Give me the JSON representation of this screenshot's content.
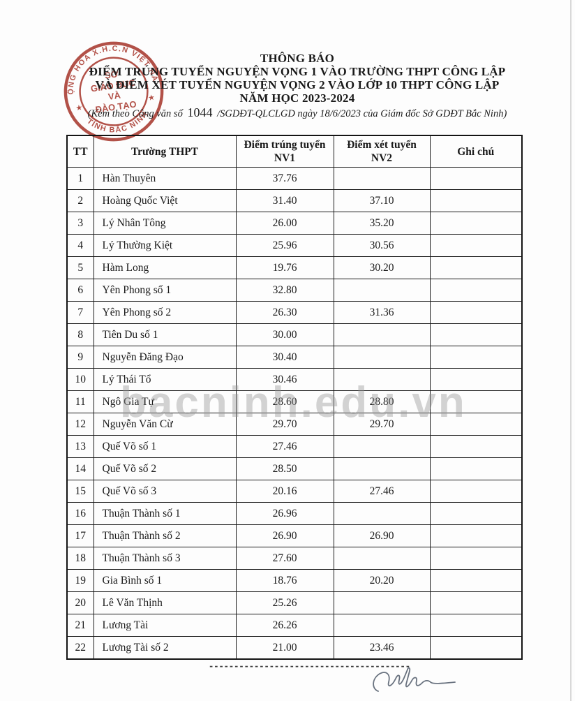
{
  "watermark": {
    "text": "bacninh.edu.vn"
  },
  "stamp": {
    "ring_top": "CỘNG HÒA X.H.C.N VIỆT NAM",
    "ring_bottom": "TỈNH BẮC NINH",
    "center_line1": "SỞ",
    "center_line2": "GIÁO DỤC",
    "center_line3": "VÀ",
    "center_line4": "ĐÀO TẠO",
    "star": "★",
    "color": "#a83a30"
  },
  "header": {
    "title": "THÔNG BÁO",
    "line2": "ĐIỂM TRÚNG TUYỂN NGUYỆN VỌNG 1 VÀO TRƯỜNG THPT CÔNG LẬP",
    "line3": "VÀ ĐIỂM XÉT TUYỂN NGUYỆN VỌNG 2 VÀO LỚP 10 THPT CÔNG LẬP",
    "line4": "NĂM HỌC 2023-2024",
    "subtitle_prefix": "(Kèm theo Công văn số",
    "subtitle_number": "1044",
    "subtitle_suffix": "/SGDĐT-QLCLGD ngày 18/6/2023 của Giám đốc Sở GDĐT Bắc Ninh)"
  },
  "table": {
    "columns": [
      "TT",
      "Trường THPT",
      "Điểm trúng tuyển NV1",
      "Điểm xét tuyển NV2",
      "Ghi chú"
    ],
    "rows": [
      {
        "tt": "1",
        "school": "Hàn Thuyên",
        "nv1": "37.76",
        "nv2": "",
        "note": ""
      },
      {
        "tt": "2",
        "school": "Hoàng Quốc Việt",
        "nv1": "31.40",
        "nv2": "37.10",
        "note": ""
      },
      {
        "tt": "3",
        "school": "Lý Nhân Tông",
        "nv1": "26.00",
        "nv2": "35.20",
        "note": ""
      },
      {
        "tt": "4",
        "school": "Lý Thường Kiệt",
        "nv1": "25.96",
        "nv2": "30.56",
        "note": ""
      },
      {
        "tt": "5",
        "school": "Hàm Long",
        "nv1": "19.76",
        "nv2": "30.20",
        "note": ""
      },
      {
        "tt": "6",
        "school": "Yên Phong số 1",
        "nv1": "32.80",
        "nv2": "",
        "note": ""
      },
      {
        "tt": "7",
        "school": "Yên Phong số 2",
        "nv1": "26.30",
        "nv2": "31.36",
        "note": ""
      },
      {
        "tt": "8",
        "school": "Tiên Du số 1",
        "nv1": "30.00",
        "nv2": "",
        "note": ""
      },
      {
        "tt": "9",
        "school": "Nguyễn Đăng Đạo",
        "nv1": "30.40",
        "nv2": "",
        "note": ""
      },
      {
        "tt": "10",
        "school": "Lý Thái Tổ",
        "nv1": "30.46",
        "nv2": "",
        "note": ""
      },
      {
        "tt": "11",
        "school": "Ngô Gia Tự",
        "nv1": "28.60",
        "nv2": "28.80",
        "note": ""
      },
      {
        "tt": "12",
        "school": "Nguyễn Văn Cừ",
        "nv1": "29.70",
        "nv2": "29.70",
        "note": ""
      },
      {
        "tt": "13",
        "school": "Quế Võ số 1",
        "nv1": "27.46",
        "nv2": "",
        "note": ""
      },
      {
        "tt": "14",
        "school": "Quế Võ số 2",
        "nv1": "28.50",
        "nv2": "",
        "note": ""
      },
      {
        "tt": "15",
        "school": "Quế Võ số 3",
        "nv1": "20.16",
        "nv2": "27.46",
        "note": ""
      },
      {
        "tt": "16",
        "school": "Thuận Thành số 1",
        "nv1": "26.96",
        "nv2": "",
        "note": ""
      },
      {
        "tt": "17",
        "school": "Thuận Thành số 2",
        "nv1": "26.90",
        "nv2": "26.90",
        "note": ""
      },
      {
        "tt": "18",
        "school": "Thuận Thành số 3",
        "nv1": "27.60",
        "nv2": "",
        "note": ""
      },
      {
        "tt": "19",
        "school": "Gia Bình số 1",
        "nv1": "18.76",
        "nv2": "20.20",
        "note": ""
      },
      {
        "tt": "20",
        "school": "Lê Văn Thịnh",
        "nv1": "25.26",
        "nv2": "",
        "note": ""
      },
      {
        "tt": "21",
        "school": "Lương Tài",
        "nv1": "26.26",
        "nv2": "",
        "note": ""
      },
      {
        "tt": "22",
        "school": "Lương Tài số 2",
        "nv1": "21.00",
        "nv2": "23.46",
        "note": ""
      }
    ]
  },
  "footer": {
    "divider": "----------------------------------------"
  }
}
